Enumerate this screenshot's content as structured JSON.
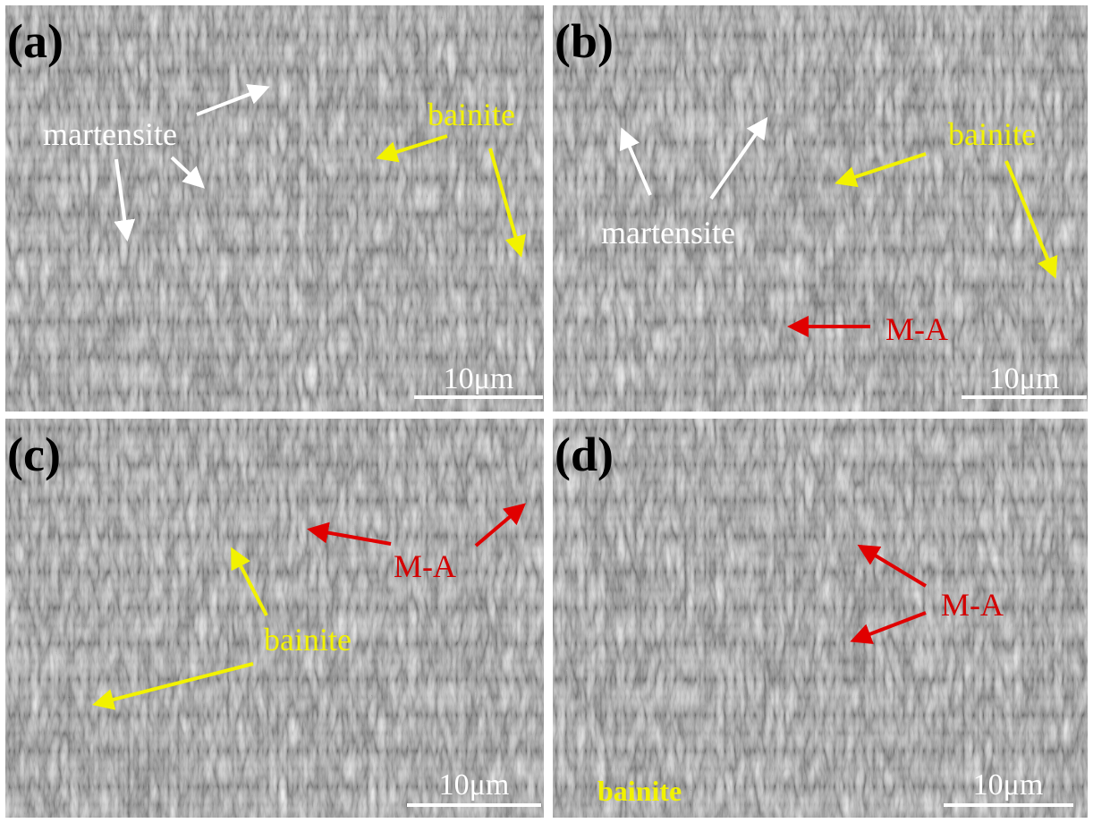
{
  "panels": [
    {
      "label": "(a)",
      "annotations": [
        "martensite",
        "bainite"
      ],
      "scale_bar": "10μm"
    },
    {
      "label": "(b)",
      "annotations": [
        "martensite",
        "bainite",
        "M-A"
      ],
      "scale_bar": "10μm"
    },
    {
      "label": "(c)",
      "annotations": [
        "M-A",
        "bainite"
      ],
      "scale_bar": "10μm"
    },
    {
      "label": "(d)",
      "annotations": [
        "M-A",
        "bainite"
      ],
      "scale_bar": "10μm"
    }
  ]
}
